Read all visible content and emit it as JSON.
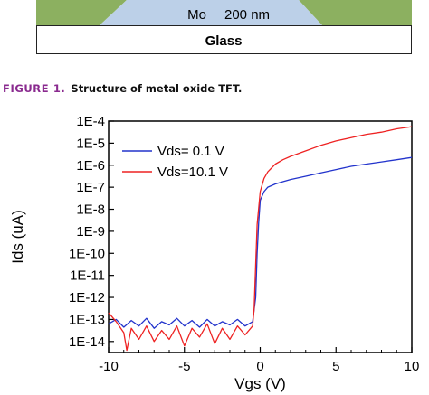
{
  "structure": {
    "mo_label": "Mo",
    "mo_thickness": "200 nm",
    "substrate_label": "Glass",
    "colors": {
      "mo": "#bcd0e8",
      "green": "#8cb060",
      "glass": "#ffffff"
    }
  },
  "caption": {
    "label": "FIGURE 1.",
    "text": "Structure of metal oxide TFT."
  },
  "chart_data": {
    "type": "line",
    "xlabel": "Vgs (V)",
    "ylabel": "Ids (uA)",
    "xlim": [
      -10,
      10
    ],
    "ylim_log10": [
      -14.5,
      -4
    ],
    "y_scale": "log",
    "x_ticks": [
      -10,
      -5,
      0,
      5,
      10
    ],
    "x_tick_labels": [
      "-10",
      "-5",
      "0",
      "5",
      "10"
    ],
    "y_ticks_log10": [
      -4,
      -5,
      -6,
      -7,
      -8,
      -9,
      -10,
      -11,
      -12,
      -13,
      -14
    ],
    "y_tick_labels": [
      "1E-4",
      "1E-5",
      "1E-6",
      "1E-7",
      "1E-8",
      "1E-9",
      "1E-10",
      "1E-11",
      "1E-12",
      "1E-13",
      "1E-14"
    ],
    "grid": false,
    "legend_position": "top-left",
    "series": [
      {
        "name": "Vds= 0.1 V",
        "color": "#2233cc",
        "x": [
          -10,
          -9.5,
          -9,
          -8.5,
          -8,
          -7.5,
          -7,
          -6.5,
          -6,
          -5.5,
          -5,
          -4.5,
          -4,
          -3.5,
          -3,
          -2.5,
          -2,
          -1.5,
          -1,
          -0.5,
          -0.3,
          -0.2,
          -0.1,
          0,
          0.25,
          0.5,
          1,
          1.5,
          2,
          3,
          4,
          5,
          6,
          7,
          8,
          9,
          10
        ],
        "log10_y": [
          -13.2,
          -13.0,
          -13.35,
          -13.05,
          -13.3,
          -12.95,
          -13.4,
          -13.1,
          -13.25,
          -12.95,
          -13.3,
          -13.05,
          -13.35,
          -13.0,
          -13.3,
          -13.1,
          -13.25,
          -13.0,
          -13.3,
          -13.1,
          -12.0,
          -10.0,
          -8.6,
          -7.6,
          -7.2,
          -7.0,
          -6.85,
          -6.75,
          -6.65,
          -6.5,
          -6.35,
          -6.2,
          -6.05,
          -5.95,
          -5.85,
          -5.75,
          -5.65
        ]
      },
      {
        "name": "Vds=10.1 V",
        "color": "#ee2222",
        "x": [
          -10,
          -9.5,
          -9,
          -8.8,
          -8.5,
          -8,
          -7.5,
          -7,
          -6.5,
          -6,
          -5.5,
          -5,
          -4.5,
          -4,
          -3.5,
          -3,
          -2.5,
          -2,
          -1.5,
          -1,
          -0.5,
          -0.4,
          -0.3,
          -0.2,
          0,
          0.25,
          0.5,
          1,
          1.5,
          2,
          3,
          4,
          5,
          6,
          7,
          8,
          9,
          10
        ],
        "log10_y": [
          -12.7,
          -13.1,
          -13.6,
          -14.4,
          -13.4,
          -13.9,
          -13.3,
          -14.0,
          -13.5,
          -13.9,
          -13.3,
          -14.2,
          -13.4,
          -13.8,
          -13.2,
          -14.1,
          -13.4,
          -13.9,
          -13.3,
          -13.7,
          -13.3,
          -12.5,
          -10.5,
          -8.7,
          -7.2,
          -6.6,
          -6.3,
          -5.95,
          -5.75,
          -5.6,
          -5.35,
          -5.1,
          -4.9,
          -4.75,
          -4.6,
          -4.5,
          -4.35,
          -4.25
        ]
      }
    ]
  }
}
